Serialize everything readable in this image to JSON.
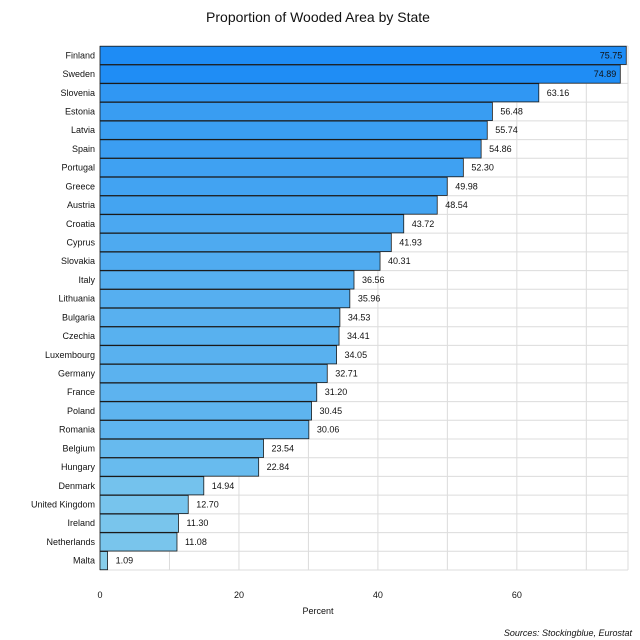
{
  "chart_data": {
    "type": "bar",
    "orientation": "horizontal",
    "title": "Proportion of Wooded Area by State",
    "xlabel": "Percent",
    "ylabel": "",
    "xlim": [
      0,
      76
    ],
    "xticks": [
      0,
      20,
      40,
      60
    ],
    "grid": true,
    "categories": [
      "Finland",
      "Sweden",
      "Slovenia",
      "Estonia",
      "Latvia",
      "Spain",
      "Portugal",
      "Greece",
      "Austria",
      "Croatia",
      "Cyprus",
      "Slovakia",
      "Italy",
      "Lithuania",
      "Bulgaria",
      "Czechia",
      "Luxembourg",
      "Germany",
      "France",
      "Poland",
      "Romania",
      "Belgium",
      "Hungary",
      "Denmark",
      "United Kingdom",
      "Ireland",
      "Netherlands",
      "Malta"
    ],
    "values": [
      75.75,
      74.89,
      63.16,
      56.48,
      55.74,
      54.86,
      52.3,
      49.98,
      48.54,
      43.72,
      41.93,
      40.31,
      36.56,
      35.96,
      34.53,
      34.41,
      34.05,
      32.71,
      31.2,
      30.45,
      30.06,
      23.54,
      22.84,
      14.94,
      12.7,
      11.3,
      11.08,
      1.09
    ],
    "value_labels": [
      "75.75",
      "74.89",
      "63.16",
      "56.48",
      "55.74",
      "54.86",
      "52.30",
      "49.98",
      "48.54",
      "43.72",
      "41.93",
      "40.31",
      "36.56",
      "35.96",
      "34.53",
      "34.41",
      "34.05",
      "32.71",
      "31.20",
      "30.45",
      "30.06",
      "23.54",
      "22.84",
      "14.94",
      "12.70",
      "11.30",
      "11.08",
      "1.09"
    ],
    "color_high": "#1e8cf5",
    "color_low": "#87ceeb",
    "source": "Sources: Stockingblue, Eurostat"
  }
}
